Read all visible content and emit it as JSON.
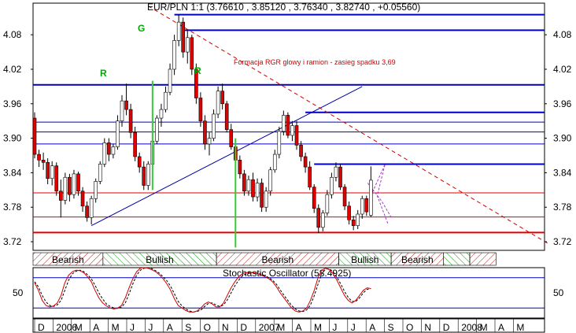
{
  "header": {
    "title": "EUR/PLN 1:1 (3.76610 , 3.85120 , 3.76340 , 3.82740 , +0.05560)"
  },
  "annotation": {
    "text": "Formacja RGR glowy i ramion - zasieg spadku 3,69"
  },
  "pattern_labels": {
    "left_shoulder": "R",
    "head": "G",
    "right_shoulder": "R"
  },
  "colors": {
    "background": "#ffffff",
    "candle_up": "#ffffff",
    "candle_down": "#e00000",
    "candle_outline": "#000000",
    "horizontal_line": "#0000c0",
    "support_red": "#e00000",
    "trendline": "#0000a0",
    "neckline_dashed": "#d00000",
    "pattern_label": "#00aa00",
    "stochastic_k": "#d00000",
    "stochastic_d": "#000000",
    "vertical_marker": "#33cc33"
  },
  "regimes": [
    {
      "label": "Bearish",
      "from": 0,
      "to": 16
    },
    {
      "label": "Bullish",
      "from": 16,
      "to": 42
    },
    {
      "label": "Bearish",
      "from": 42,
      "to": 70
    },
    {
      "label": "Bullish",
      "from": 70,
      "to": 82
    },
    {
      "label": "Bearish",
      "from": 82,
      "to": 94
    },
    {
      "label": "",
      "from": 94,
      "to": 100
    },
    {
      "label": "",
      "from": 100,
      "to": 106
    }
  ],
  "stochastic": {
    "title": "Stochastic Oscillator (58.4925)",
    "tick_label": "50",
    "level": 50
  },
  "chart_data": {
    "type": "candlestick",
    "title": "EUR/PLN 1:1 (3.76610 , 3.85120 , 3.76340 , 3.82740 , +0.05560)",
    "instrument": "EUR/PLN",
    "last": {
      "open": 3.7661,
      "high": 3.8512,
      "low": 3.7634,
      "close": 3.8274,
      "change": 0.0556
    },
    "ylim": [
      3.705,
      4.135
    ],
    "y_ticks": [
      3.72,
      3.78,
      3.84,
      3.9,
      3.96,
      4.02,
      4.08
    ],
    "y_tick_labels": [
      "3.72",
      "3.78",
      "3.84",
      "3.90",
      "3.96",
      "4.02",
      "4.08"
    ],
    "x_tick_labels": [
      "D",
      "2006",
      "M",
      "A",
      "M",
      "J",
      "J",
      "A",
      "S",
      "O",
      "N",
      "D",
      "2007",
      "M",
      "A",
      "M",
      "J",
      "J",
      "A",
      "S",
      "O",
      "N",
      "D",
      "2008",
      "M",
      "A",
      "M"
    ],
    "grid": false,
    "horizontal_levels": [
      {
        "value": 4.115,
        "color": "blue",
        "from_index": 32
      },
      {
        "value": 4.088,
        "color": "blue",
        "from_index": 34
      },
      {
        "value": 3.993,
        "color": "blue",
        "from_index": 0
      },
      {
        "value": 3.945,
        "color": "blue",
        "from_index": 62
      },
      {
        "value": 3.928,
        "color": "blue",
        "from_index": 0
      },
      {
        "value": 3.911,
        "color": "blue",
        "from_index": 0
      },
      {
        "value": 3.89,
        "color": "blue",
        "from_index": 0
      },
      {
        "value": 3.855,
        "color": "blue",
        "from_index": 64
      },
      {
        "value": 3.805,
        "color": "red",
        "from_index": 0
      },
      {
        "value": 3.763,
        "color": "red",
        "from_index": 0
      },
      {
        "value": 3.736,
        "color": "red",
        "from_index": 0,
        "bold": true
      }
    ],
    "trendlines": [
      {
        "kind": "solid",
        "from": [
          13,
          3.748
        ],
        "to": [
          75,
          3.99
        ]
      },
      {
        "kind": "dashed",
        "from": [
          26,
          4.13
        ],
        "to": [
          118,
          3.715
        ]
      }
    ],
    "vertical_markers": [
      {
        "index": 27,
        "from": 3.81,
        "to": 4.0
      },
      {
        "index": 46,
        "from": 3.71,
        "to": 3.9
      }
    ],
    "candles": [
      {
        "o": 3.935,
        "h": 3.945,
        "l": 3.865,
        "c": 3.872
      },
      {
        "o": 3.872,
        "h": 3.88,
        "l": 3.85,
        "c": 3.862
      },
      {
        "o": 3.862,
        "h": 3.875,
        "l": 3.845,
        "c": 3.858
      },
      {
        "o": 3.858,
        "h": 3.865,
        "l": 3.82,
        "c": 3.83
      },
      {
        "o": 3.83,
        "h": 3.86,
        "l": 3.818,
        "c": 3.852
      },
      {
        "o": 3.852,
        "h": 3.858,
        "l": 3.8,
        "c": 3.808
      },
      {
        "o": 3.808,
        "h": 3.828,
        "l": 3.762,
        "c": 3.792
      },
      {
        "o": 3.792,
        "h": 3.84,
        "l": 3.785,
        "c": 3.832
      },
      {
        "o": 3.832,
        "h": 3.838,
        "l": 3.79,
        "c": 3.802
      },
      {
        "o": 3.802,
        "h": 3.845,
        "l": 3.795,
        "c": 3.838
      },
      {
        "o": 3.838,
        "h": 3.842,
        "l": 3.8,
        "c": 3.808
      },
      {
        "o": 3.808,
        "h": 3.815,
        "l": 3.772,
        "c": 3.782
      },
      {
        "o": 3.782,
        "h": 3.79,
        "l": 3.755,
        "c": 3.762
      },
      {
        "o": 3.762,
        "h": 3.8,
        "l": 3.75,
        "c": 3.795
      },
      {
        "o": 3.795,
        "h": 3.83,
        "l": 3.788,
        "c": 3.825
      },
      {
        "o": 3.825,
        "h": 3.86,
        "l": 3.82,
        "c": 3.855
      },
      {
        "o": 3.855,
        "h": 3.9,
        "l": 3.85,
        "c": 3.892
      },
      {
        "o": 3.892,
        "h": 3.9,
        "l": 3.86,
        "c": 3.872
      },
      {
        "o": 3.872,
        "h": 3.89,
        "l": 3.865,
        "c": 3.885
      },
      {
        "o": 3.885,
        "h": 3.94,
        "l": 3.88,
        "c": 3.93
      },
      {
        "o": 3.93,
        "h": 3.975,
        "l": 3.92,
        "c": 3.965
      },
      {
        "o": 3.965,
        "h": 3.995,
        "l": 3.94,
        "c": 3.95
      },
      {
        "o": 3.95,
        "h": 3.96,
        "l": 3.9,
        "c": 3.91
      },
      {
        "o": 3.91,
        "h": 3.92,
        "l": 3.86,
        "c": 3.868
      },
      {
        "o": 3.868,
        "h": 3.875,
        "l": 3.84,
        "c": 3.85
      },
      {
        "o": 3.85,
        "h": 3.86,
        "l": 3.81,
        "c": 3.818
      },
      {
        "o": 3.818,
        "h": 3.86,
        "l": 3.81,
        "c": 3.855
      },
      {
        "o": 3.855,
        "h": 3.9,
        "l": 3.85,
        "c": 3.895
      },
      {
        "o": 3.895,
        "h": 3.94,
        "l": 3.89,
        "c": 3.935
      },
      {
        "o": 3.935,
        "h": 3.96,
        "l": 3.92,
        "c": 3.95
      },
      {
        "o": 3.95,
        "h": 3.99,
        "l": 3.945,
        "c": 3.98
      },
      {
        "o": 3.98,
        "h": 4.03,
        "l": 3.975,
        "c": 4.02
      },
      {
        "o": 4.02,
        "h": 4.08,
        "l": 4.01,
        "c": 4.07
      },
      {
        "o": 4.07,
        "h": 4.115,
        "l": 4.06,
        "c": 4.102
      },
      {
        "o": 4.102,
        "h": 4.11,
        "l": 4.04,
        "c": 4.05
      },
      {
        "o": 4.05,
        "h": 4.088,
        "l": 4.03,
        "c": 4.075
      },
      {
        "o": 4.075,
        "h": 4.08,
        "l": 4.01,
        "c": 4.02
      },
      {
        "o": 4.02,
        "h": 4.03,
        "l": 3.96,
        "c": 3.97
      },
      {
        "o": 3.97,
        "h": 3.98,
        "l": 3.92,
        "c": 3.93
      },
      {
        "o": 3.93,
        "h": 3.94,
        "l": 3.88,
        "c": 3.89
      },
      {
        "o": 3.89,
        "h": 3.91,
        "l": 3.87,
        "c": 3.9
      },
      {
        "o": 3.9,
        "h": 3.95,
        "l": 3.895,
        "c": 3.942
      },
      {
        "o": 3.942,
        "h": 3.99,
        "l": 3.935,
        "c": 3.982
      },
      {
        "o": 3.982,
        "h": 3.995,
        "l": 3.95,
        "c": 3.96
      },
      {
        "o": 3.96,
        "h": 3.965,
        "l": 3.91,
        "c": 3.915
      },
      {
        "o": 3.915,
        "h": 3.925,
        "l": 3.88,
        "c": 3.885
      },
      {
        "o": 3.885,
        "h": 3.895,
        "l": 3.855,
        "c": 3.862
      },
      {
        "o": 3.862,
        "h": 3.87,
        "l": 3.83,
        "c": 3.838
      },
      {
        "o": 3.838,
        "h": 3.845,
        "l": 3.8,
        "c": 3.808
      },
      {
        "o": 3.808,
        "h": 3.835,
        "l": 3.8,
        "c": 3.828
      },
      {
        "o": 3.828,
        "h": 3.84,
        "l": 3.79,
        "c": 3.798
      },
      {
        "o": 3.798,
        "h": 3.83,
        "l": 3.79,
        "c": 3.822
      },
      {
        "o": 3.822,
        "h": 3.83,
        "l": 3.772,
        "c": 3.78
      },
      {
        "o": 3.78,
        "h": 3.815,
        "l": 3.772,
        "c": 3.808
      },
      {
        "o": 3.808,
        "h": 3.85,
        "l": 3.8,
        "c": 3.845
      },
      {
        "o": 3.845,
        "h": 3.88,
        "l": 3.84,
        "c": 3.872
      },
      {
        "o": 3.872,
        "h": 3.92,
        "l": 3.865,
        "c": 3.912
      },
      {
        "o": 3.912,
        "h": 3.948,
        "l": 3.905,
        "c": 3.94
      },
      {
        "o": 3.94,
        "h": 3.945,
        "l": 3.9,
        "c": 3.905
      },
      {
        "o": 3.905,
        "h": 3.93,
        "l": 3.895,
        "c": 3.922
      },
      {
        "o": 3.922,
        "h": 3.93,
        "l": 3.88,
        "c": 3.888
      },
      {
        "o": 3.888,
        "h": 3.895,
        "l": 3.86,
        "c": 3.868
      },
      {
        "o": 3.868,
        "h": 3.875,
        "l": 3.84,
        "c": 3.85
      },
      {
        "o": 3.85,
        "h": 3.86,
        "l": 3.81,
        "c": 3.815
      },
      {
        "o": 3.815,
        "h": 3.82,
        "l": 3.77,
        "c": 3.778
      },
      {
        "o": 3.778,
        "h": 3.785,
        "l": 3.735,
        "c": 3.745
      },
      {
        "o": 3.745,
        "h": 3.775,
        "l": 3.738,
        "c": 3.77
      },
      {
        "o": 3.77,
        "h": 3.81,
        "l": 3.765,
        "c": 3.802
      },
      {
        "o": 3.802,
        "h": 3.84,
        "l": 3.795,
        "c": 3.832
      },
      {
        "o": 3.832,
        "h": 3.858,
        "l": 3.825,
        "c": 3.85
      },
      {
        "o": 3.85,
        "h": 3.855,
        "l": 3.81,
        "c": 3.815
      },
      {
        "o": 3.815,
        "h": 3.82,
        "l": 3.775,
        "c": 3.782
      },
      {
        "o": 3.782,
        "h": 3.79,
        "l": 3.75,
        "c": 3.758
      },
      {
        "o": 3.758,
        "h": 3.765,
        "l": 3.74,
        "c": 3.748
      },
      {
        "o": 3.748,
        "h": 3.775,
        "l": 3.742,
        "c": 3.768
      },
      {
        "o": 3.768,
        "h": 3.8,
        "l": 3.76,
        "c": 3.795
      },
      {
        "o": 3.795,
        "h": 3.8,
        "l": 3.765,
        "c": 3.772
      },
      {
        "o": 3.766,
        "h": 3.851,
        "l": 3.763,
        "c": 3.827
      }
    ],
    "stochastic": {
      "title": "Stochastic Oscillator (58.4925)",
      "value": 58.4925,
      "ylim": [
        0,
        100
      ],
      "level": 50,
      "k_values": [
        70,
        55,
        35,
        25,
        22,
        24,
        30,
        45,
        70,
        85,
        92,
        95,
        94,
        90,
        82,
        72,
        55,
        40,
        30,
        24,
        20,
        18,
        20,
        25,
        40,
        60,
        78,
        92,
        99,
        100,
        99,
        96,
        92,
        86,
        78,
        68,
        55,
        38,
        25,
        20,
        15,
        12,
        12,
        14,
        20,
        28,
        32,
        28,
        22,
        22,
        30,
        45,
        60,
        72,
        82,
        88,
        90,
        91,
        90,
        88,
        85,
        82,
        78,
        72,
        62,
        50,
        40,
        30,
        20,
        14,
        12,
        14,
        20,
        35,
        55,
        80,
        95,
        99,
        96,
        88,
        75,
        60,
        45,
        35,
        30,
        35,
        45,
        55,
        60,
        58.5
      ],
      "d_values": [
        72,
        62,
        45,
        32,
        25,
        23,
        26,
        35,
        55,
        75,
        88,
        93,
        95,
        92,
        86,
        78,
        65,
        50,
        38,
        28,
        23,
        20,
        19,
        22,
        30,
        48,
        68,
        85,
        95,
        99,
        99,
        98,
        94,
        89,
        82,
        74,
        63,
        48,
        33,
        24,
        18,
        14,
        12,
        13,
        16,
        23,
        29,
        30,
        26,
        23,
        26,
        36,
        50,
        64,
        75,
        84,
        88,
        90,
        90,
        89,
        87,
        84,
        80,
        75,
        67,
        56,
        45,
        35,
        25,
        18,
        14,
        13,
        16,
        26,
        44,
        67,
        88,
        97,
        98,
        92,
        81,
        68,
        53,
        41,
        33,
        33,
        40,
        50,
        57,
        58.5
      ]
    }
  }
}
